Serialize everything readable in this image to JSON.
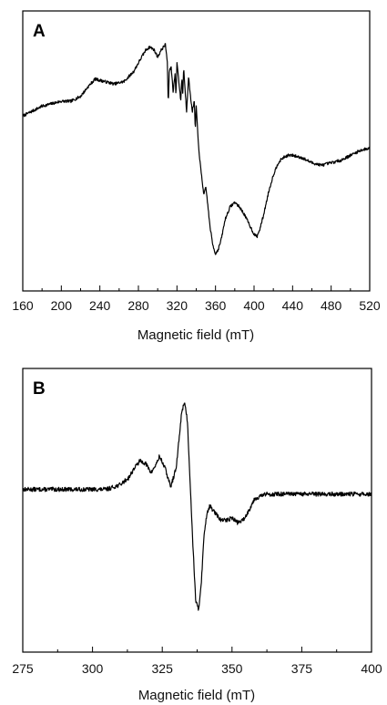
{
  "chart_data": [
    {
      "type": "line",
      "panel_label": "A",
      "xlabel": "Magnetic field (mT)",
      "ylabel": "",
      "xlim": [
        160,
        520
      ],
      "ylim": [
        0,
        100
      ],
      "xticks": [
        160,
        200,
        240,
        280,
        320,
        360,
        400,
        440,
        480,
        520
      ],
      "grid": false,
      "y_axis_ticks_shown": false,
      "noise_amplitude": 0.6,
      "line_color": "#000000",
      "series": [
        {
          "x": [
            160,
            170,
            180,
            190,
            200,
            210,
            220,
            228,
            235,
            245,
            255,
            265,
            275,
            282,
            288,
            292,
            296,
            300,
            304,
            308,
            310,
            311,
            312,
            314,
            316,
            318,
            319,
            320,
            322,
            324,
            325,
            326,
            327,
            328,
            330,
            332,
            334,
            336,
            338,
            339,
            340,
            342,
            344,
            346,
            348,
            350,
            352,
            354,
            357,
            360,
            363,
            366,
            370,
            375,
            380,
            385,
            390,
            395,
            400,
            403,
            406,
            410,
            415,
            420,
            425,
            430,
            435,
            440,
            450,
            460,
            470,
            480,
            490,
            500,
            510,
            520
          ],
          "values": [
            64,
            66,
            68,
            69,
            70,
            70,
            72,
            76,
            79,
            78,
            77,
            78,
            82,
            87,
            91,
            92,
            91,
            88,
            91,
            93,
            86,
            68,
            82,
            84,
            74,
            81,
            72,
            86,
            78,
            70,
            80,
            73,
            84,
            77,
            66,
            80,
            72,
            66,
            70,
            58,
            68,
            54,
            45,
            38,
            32,
            35,
            28,
            20,
            12,
            8,
            10,
            14,
            22,
            27,
            29,
            27,
            24,
            20,
            16,
            15,
            18,
            24,
            33,
            40,
            45,
            47,
            48,
            48,
            47,
            45,
            44,
            45,
            46,
            48,
            50,
            51
          ]
        }
      ]
    },
    {
      "type": "line",
      "panel_label": "B",
      "xlabel": "Magnetic field (mT)",
      "ylabel": "",
      "xlim": [
        275,
        400
      ],
      "ylim": [
        0,
        100
      ],
      "xticks": [
        275,
        300,
        325,
        350,
        375,
        400
      ],
      "grid": false,
      "y_axis_ticks_shown": false,
      "noise_amplitude": 0.9,
      "line_color": "#000000",
      "series": [
        {
          "x": [
            275,
            285,
            295,
            305,
            310,
            313,
            315,
            317,
            319,
            321,
            323,
            324,
            326,
            328,
            330,
            332,
            333,
            334,
            335,
            336,
            337,
            338,
            339,
            340,
            341,
            342,
            344,
            346,
            348,
            350,
            352,
            354,
            356,
            358,
            362,
            370,
            380,
            390,
            400
          ],
          "values": [
            59,
            59,
            59,
            59,
            61,
            64,
            68,
            71,
            70,
            66,
            70,
            73,
            68,
            60,
            68,
            92,
            96,
            88,
            62,
            35,
            12,
            8,
            20,
            40,
            49,
            52,
            49,
            46,
            46,
            47,
            45,
            46,
            50,
            55,
            57,
            57,
            57,
            57,
            57
          ]
        }
      ]
    }
  ]
}
